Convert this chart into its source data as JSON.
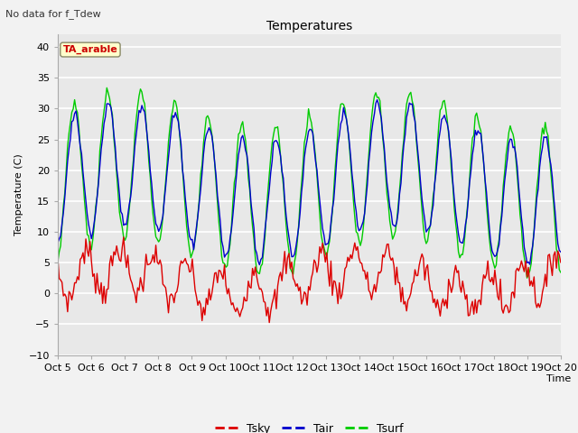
{
  "title": "Temperatures",
  "subtitle": "No data for f_Tdew",
  "ylabel": "Temperature (C)",
  "xlabel": "Time",
  "annotation": "TA_arable",
  "annotation_color": "#cc0000",
  "annotation_bg": "#ffffcc",
  "plot_bg": "#e8e8e8",
  "fig_bg": "#f2f2f2",
  "grid_color": "#ffffff",
  "ylim": [
    -10,
    42
  ],
  "yticks": [
    -10,
    -5,
    0,
    5,
    10,
    15,
    20,
    25,
    30,
    35,
    40
  ],
  "tsky_color": "#dd0000",
  "tair_color": "#0000cc",
  "tsurf_color": "#00cc00",
  "legend_labels": [
    "Tsky",
    "Tair",
    "Tsurf"
  ],
  "n_days": 15,
  "n_points": 360,
  "figwidth": 6.4,
  "figheight": 4.8,
  "dpi": 100
}
